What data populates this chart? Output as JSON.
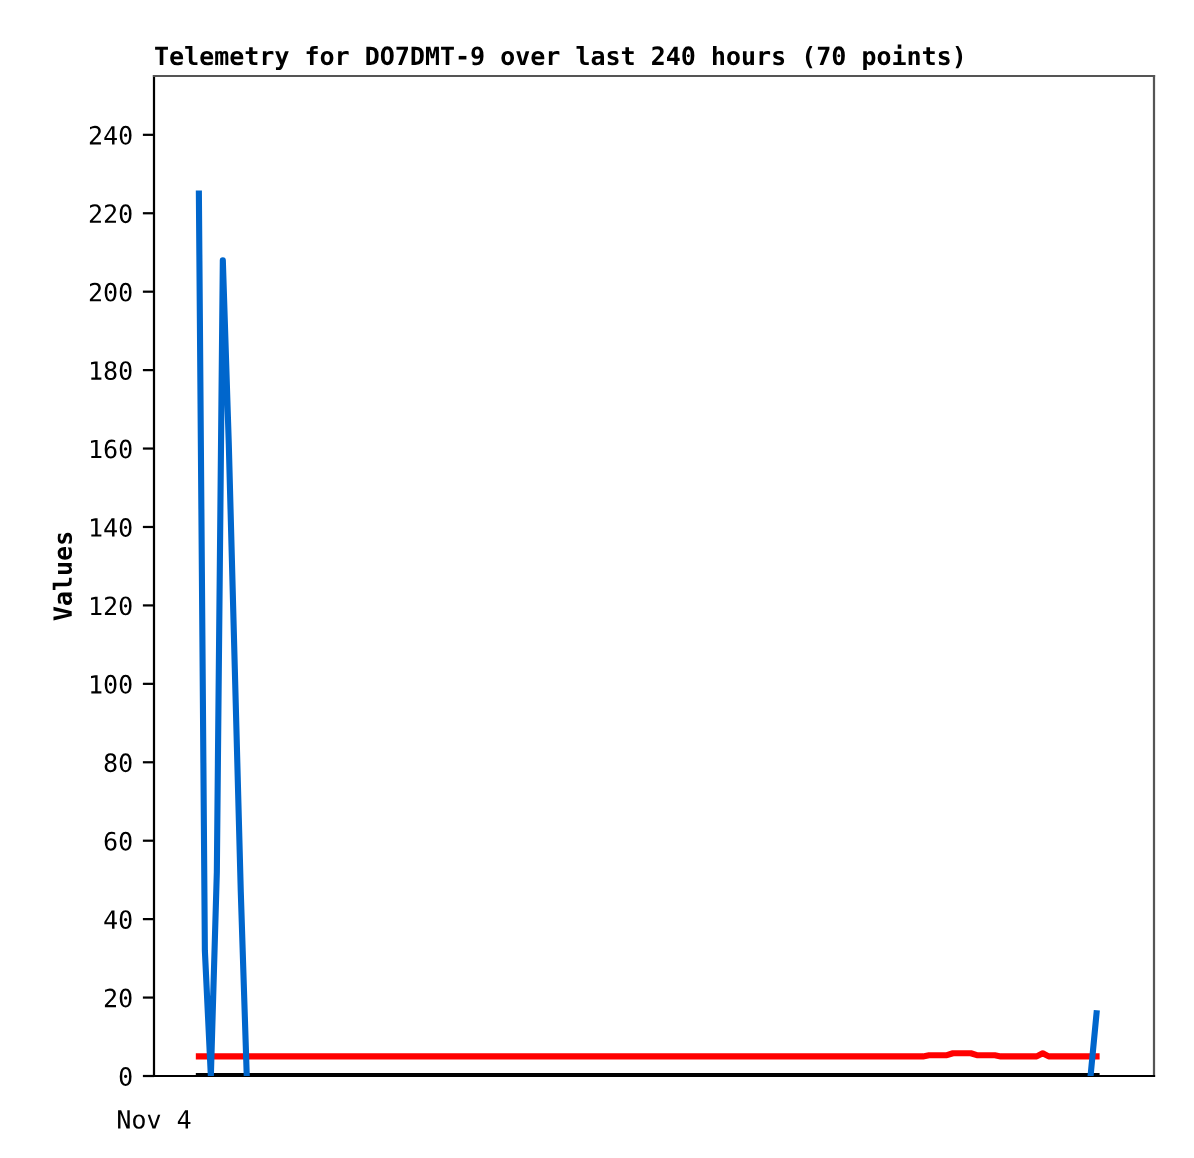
{
  "chart_data": {
    "type": "line",
    "title": "Telemetry for DO7DMT-9 over last 240 hours (70 points)",
    "ylabel": "Values",
    "annotations": [
      "Nov 4"
    ],
    "categories": [
      null,
      null,
      null,
      null,
      null,
      null,
      null,
      null,
      null,
      null,
      null,
      null,
      null,
      null,
      null,
      null,
      null,
      null,
      null,
      null,
      null,
      null,
      null,
      null,
      null,
      null,
      null,
      null,
      null,
      null,
      null,
      null,
      null,
      null,
      null,
      null,
      null,
      null,
      null,
      null,
      null,
      null,
      null,
      null,
      null,
      null,
      null,
      null,
      null,
      null,
      null,
      null,
      null,
      null,
      null,
      null,
      null,
      null,
      null,
      null,
      null,
      null,
      null,
      null,
      null,
      null,
      null,
      null,
      null,
      null,
      null,
      null,
      null,
      null,
      null,
      null,
      null,
      null,
      null,
      null,
      null,
      null,
      null,
      null,
      null,
      null,
      null,
      null,
      null,
      null,
      null,
      null,
      null,
      null,
      null,
      null,
      null,
      null,
      null,
      null,
      null,
      null,
      null,
      null,
      null,
      null,
      null,
      null,
      null,
      null,
      null,
      null,
      null,
      null,
      null,
      null,
      null,
      null,
      null,
      null,
      null,
      null,
      null,
      null,
      null,
      null,
      null,
      null,
      null,
      null,
      null,
      null,
      null,
      null,
      null,
      null,
      null,
      null,
      null,
      null,
      null,
      null,
      null,
      null,
      null,
      null,
      null,
      null,
      null,
      null,
      null
    ],
    "ylim": [
      0,
      255
    ],
    "yticks": [
      0,
      20,
      40,
      60,
      80,
      100,
      120,
      140,
      160,
      180,
      200,
      220,
      240
    ],
    "grid": false,
    "marker": "none",
    "line_style": "solid",
    "series": [
      {
        "color": "#000000",
        "values": [
          0,
          0,
          0,
          0,
          0,
          0,
          0,
          0,
          0,
          0,
          0,
          0,
          0,
          0,
          0,
          0,
          0,
          0,
          0,
          0,
          0,
          0,
          0,
          0,
          0,
          0,
          0,
          0,
          0,
          0,
          0,
          0,
          0,
          0,
          0,
          0,
          0,
          0,
          0,
          0,
          0,
          0,
          0,
          0,
          0,
          0,
          0,
          0,
          0,
          0,
          0,
          0,
          0,
          0,
          0,
          0,
          0,
          0,
          0,
          0,
          0,
          0,
          0,
          0,
          0,
          0,
          0,
          0,
          0,
          0,
          0,
          0,
          0,
          0,
          0,
          0,
          0,
          0,
          0,
          0,
          0,
          0,
          0,
          0,
          0,
          0,
          0,
          0,
          0,
          0,
          0,
          0,
          0,
          0,
          0,
          0,
          0,
          0,
          0,
          0,
          0,
          0,
          0,
          0,
          0,
          0,
          0,
          0,
          0,
          0,
          0,
          0,
          0,
          0,
          0,
          0,
          0,
          0,
          0,
          0,
          0,
          0,
          0,
          0,
          0,
          0,
          0,
          0,
          0,
          0,
          0,
          0,
          0,
          0,
          0,
          0,
          0,
          0,
          0,
          0,
          0,
          0,
          0,
          0,
          0,
          0,
          0,
          0,
          0,
          0,
          0
        ]
      },
      {
        "color": "#ff0000",
        "values": [
          5,
          5,
          5,
          5,
          5,
          5,
          5,
          5,
          5,
          5,
          5,
          5,
          5,
          5,
          5,
          5,
          5,
          5,
          5,
          5,
          5,
          5,
          5,
          5,
          5,
          5,
          5,
          5,
          5,
          5,
          5,
          5,
          5,
          5,
          5,
          5,
          5,
          5,
          5,
          5,
          5,
          5,
          5,
          5,
          5,
          5,
          5,
          5,
          5,
          5,
          5,
          5,
          5,
          5,
          5,
          5,
          5,
          5,
          5,
          5,
          5,
          5,
          5,
          5,
          5,
          5,
          5,
          5,
          5,
          5,
          5,
          5,
          5,
          5,
          5,
          5,
          5,
          5,
          5,
          5,
          5,
          5,
          5,
          5,
          5,
          5,
          5,
          5,
          5,
          5,
          5,
          5,
          5,
          5,
          5,
          5,
          5,
          5,
          5,
          5,
          5,
          5,
          5,
          5,
          5,
          5,
          5,
          5,
          5,
          5,
          5,
          5,
          5,
          5,
          5,
          5,
          5,
          5,
          5,
          5,
          5,
          5,
          5.3,
          5.3,
          5.3,
          5.3,
          5.8,
          5.8,
          5.8,
          5.8,
          5.3,
          5.3,
          5.3,
          5.3,
          5,
          5,
          5,
          5,
          5,
          5,
          5,
          5.8,
          5,
          5,
          5,
          5,
          5,
          5,
          5,
          5,
          5
        ]
      },
      {
        "color": "#0066cc",
        "values": [
          225,
          32,
          0,
          52,
          208,
          161,
          104,
          47,
          0,
          null,
          null,
          null,
          null,
          null,
          null,
          null,
          null,
          null,
          null,
          null,
          null,
          null,
          null,
          null,
          null,
          null,
          null,
          null,
          null,
          null,
          null,
          null,
          null,
          null,
          null,
          null,
          null,
          null,
          null,
          null,
          null,
          null,
          null,
          null,
          null,
          null,
          null,
          null,
          null,
          null,
          null,
          null,
          null,
          null,
          null,
          null,
          null,
          null,
          null,
          null,
          null,
          null,
          null,
          null,
          null,
          null,
          null,
          null,
          null,
          null,
          null,
          null,
          null,
          null,
          null,
          null,
          null,
          null,
          null,
          null,
          null,
          null,
          null,
          null,
          null,
          null,
          null,
          null,
          null,
          null,
          null,
          null,
          null,
          null,
          null,
          null,
          null,
          null,
          null,
          null,
          null,
          null,
          null,
          null,
          null,
          null,
          null,
          null,
          null,
          null,
          null,
          null,
          null,
          null,
          null,
          null,
          null,
          null,
          null,
          null,
          null,
          null,
          null,
          null,
          null,
          null,
          null,
          null,
          null,
          null,
          null,
          null,
          null,
          null,
          null,
          null,
          null,
          null,
          null,
          null,
          null,
          null,
          null,
          null,
          null,
          null,
          null,
          null,
          null,
          0,
          16
        ]
      }
    ]
  }
}
